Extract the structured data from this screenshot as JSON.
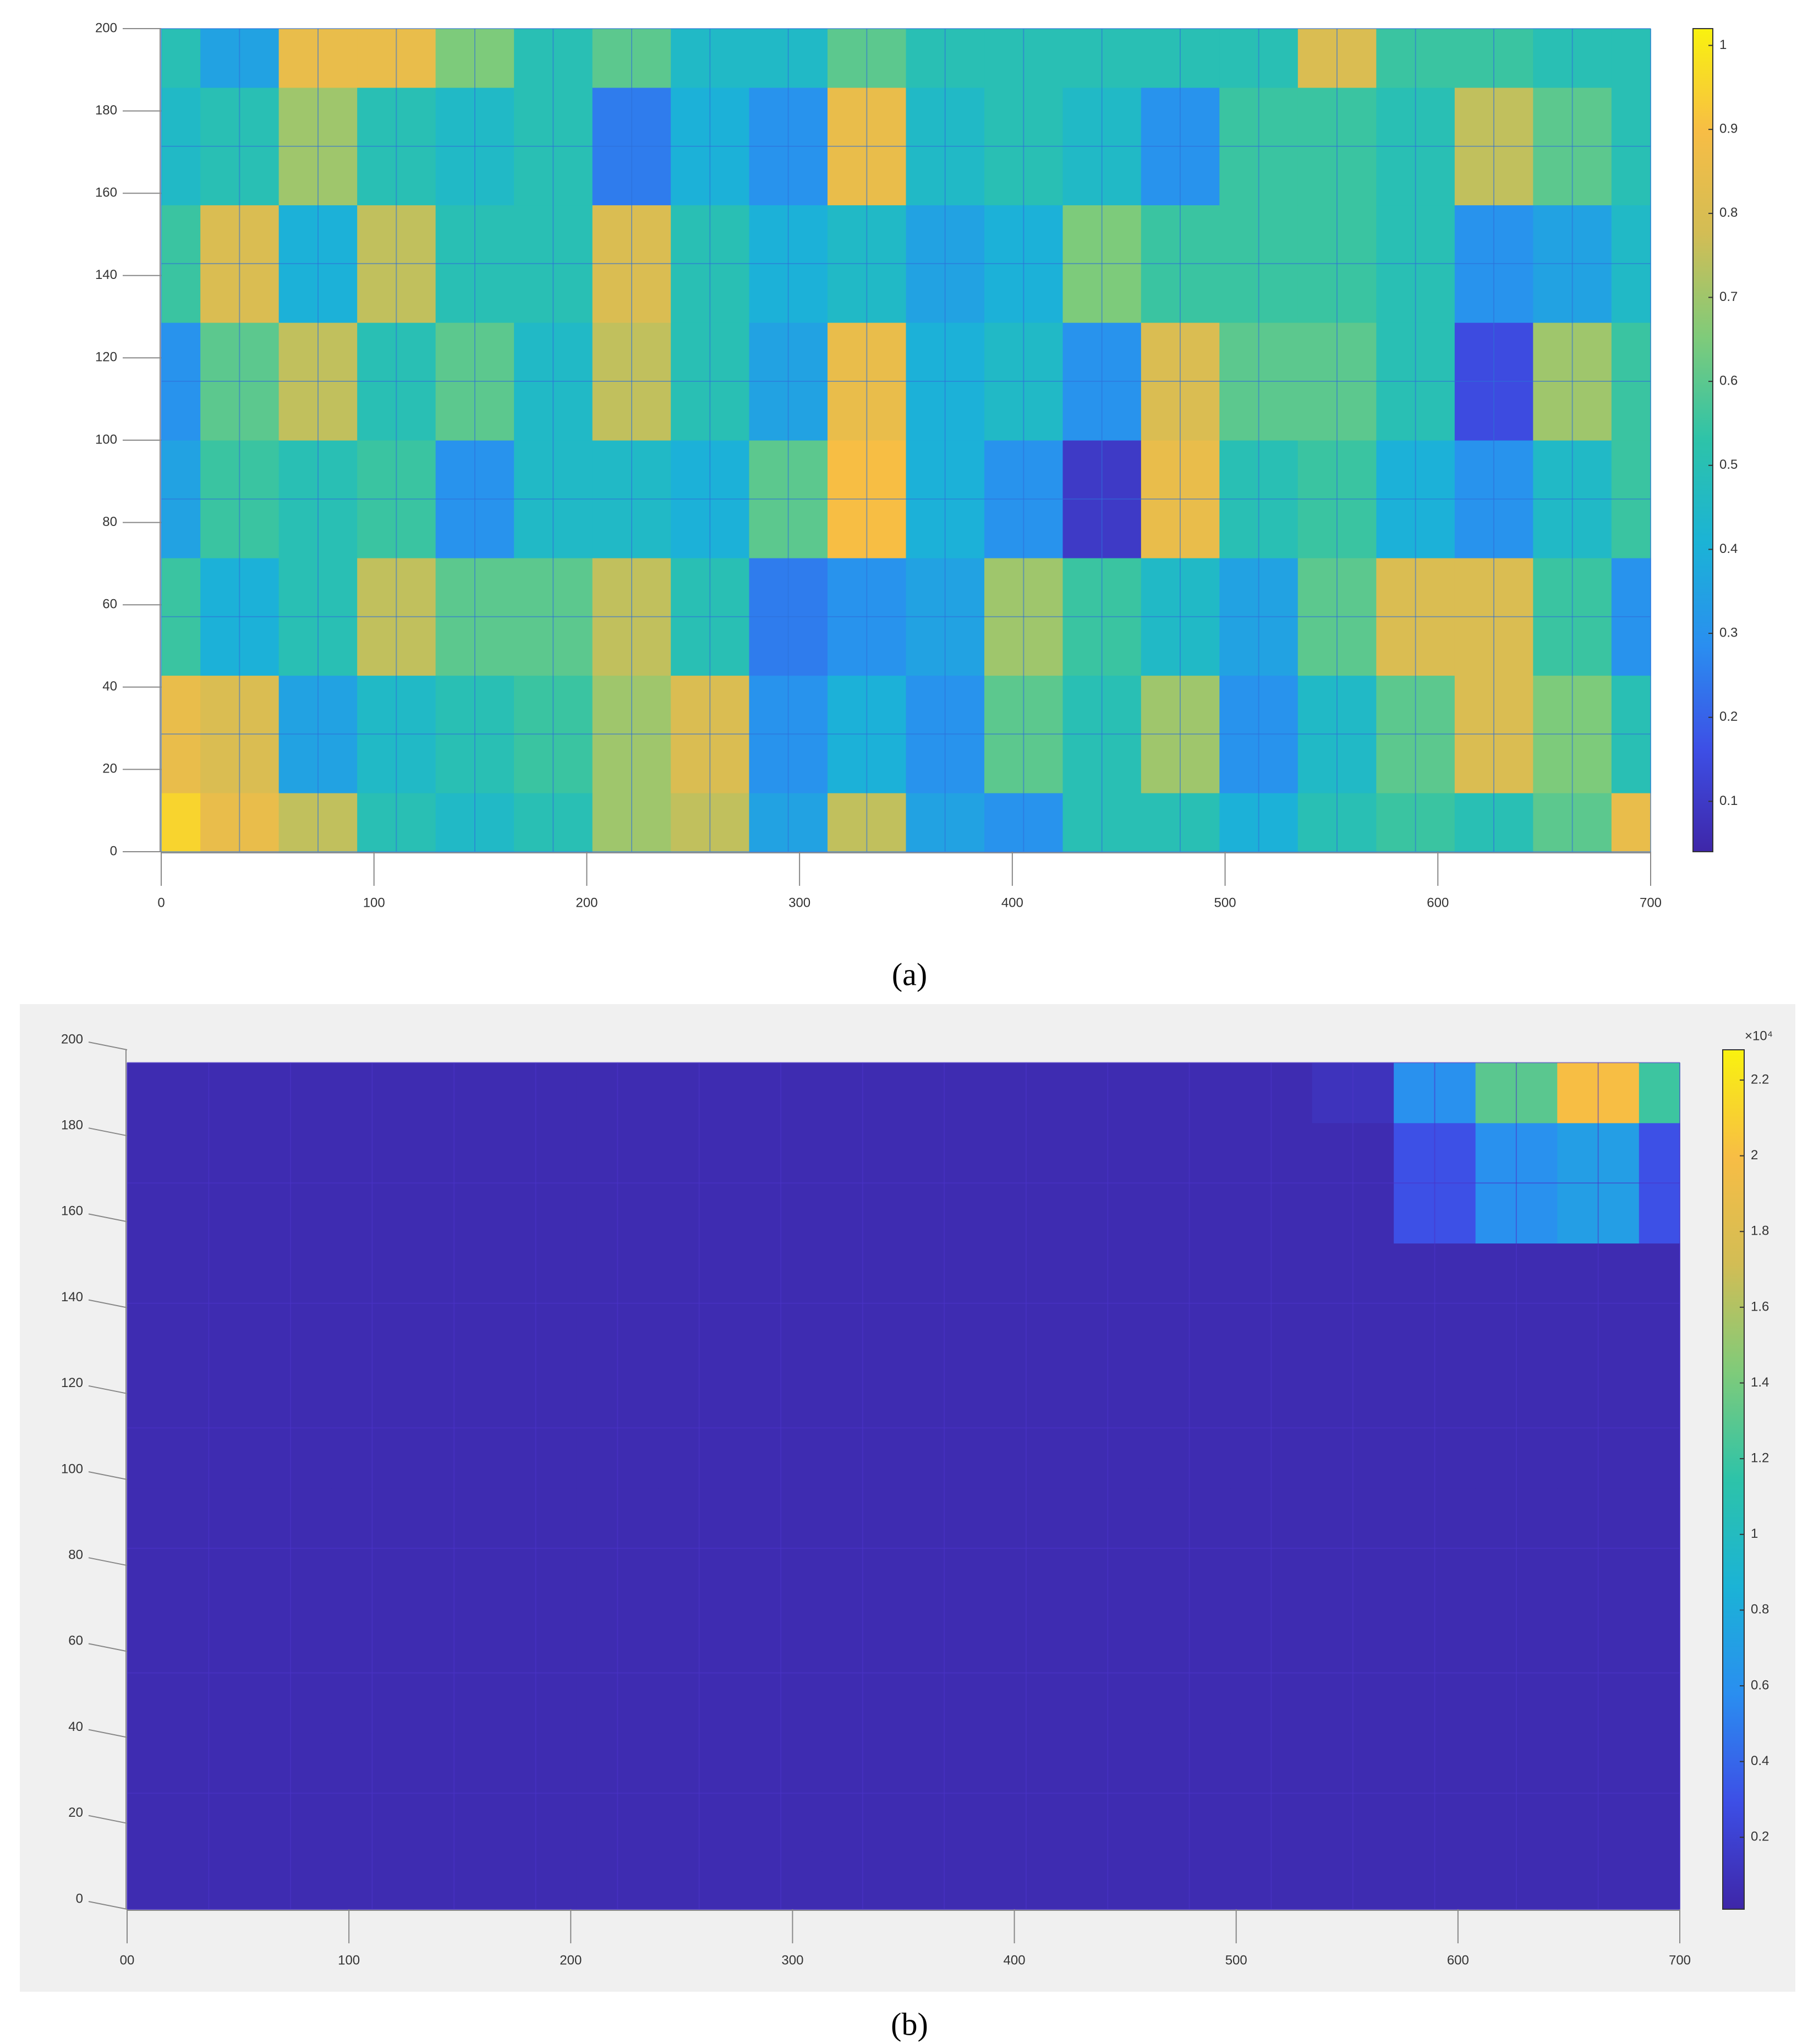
{
  "chart_data": [
    {
      "type": "heatmap",
      "caption": "(a)",
      "grid": true,
      "x": [
        0,
        36.8,
        73.7,
        110.5,
        147.4,
        184.2,
        221.1,
        257.9,
        294.7,
        331.6,
        368.4,
        405.3,
        442.1,
        478.9,
        515.8,
        552.6,
        589.5,
        626.3,
        663.2,
        700
      ],
      "y": [
        0,
        28.6,
        57.1,
        85.7,
        114.3,
        142.9,
        171.4,
        200
      ],
      "z": [
        [
          0.95,
          0.85,
          0.75,
          0.5,
          0.45,
          0.5,
          0.7,
          0.75,
          0.35,
          0.75,
          0.35,
          0.3,
          0.5,
          0.5,
          0.4,
          0.5,
          0.55,
          0.5,
          0.6,
          0.85
        ],
        [
          0.85,
          0.8,
          0.35,
          0.45,
          0.5,
          0.55,
          0.7,
          0.8,
          0.3,
          0.4,
          0.3,
          0.6,
          0.5,
          0.7,
          0.3,
          0.45,
          0.6,
          0.8,
          0.65,
          0.5
        ],
        [
          0.55,
          0.4,
          0.5,
          0.75,
          0.6,
          0.6,
          0.75,
          0.5,
          0.25,
          0.3,
          0.35,
          0.7,
          0.55,
          0.45,
          0.35,
          0.6,
          0.8,
          0.8,
          0.55,
          0.3
        ],
        [
          0.35,
          0.55,
          0.5,
          0.55,
          0.3,
          0.45,
          0.45,
          0.4,
          0.6,
          0.9,
          0.4,
          0.3,
          0.1,
          0.85,
          0.5,
          0.55,
          0.4,
          0.3,
          0.45,
          0.55
        ],
        [
          0.3,
          0.6,
          0.75,
          0.5,
          0.6,
          0.45,
          0.75,
          0.5,
          0.35,
          0.85,
          0.4,
          0.45,
          0.3,
          0.8,
          0.6,
          0.6,
          0.5,
          0.15,
          0.7,
          0.55
        ],
        [
          0.55,
          0.8,
          0.4,
          0.75,
          0.5,
          0.5,
          0.8,
          0.5,
          0.4,
          0.45,
          0.35,
          0.4,
          0.65,
          0.55,
          0.55,
          0.55,
          0.5,
          0.3,
          0.35,
          0.45
        ],
        [
          0.45,
          0.5,
          0.7,
          0.5,
          0.45,
          0.5,
          0.25,
          0.4,
          0.3,
          0.85,
          0.45,
          0.5,
          0.45,
          0.3,
          0.55,
          0.55,
          0.5,
          0.75,
          0.6,
          0.5
        ],
        [
          0.5,
          0.35,
          0.85,
          0.85,
          0.65,
          0.5,
          0.6,
          0.45,
          0.45,
          0.6,
          0.5,
          0.5,
          0.5,
          0.5,
          0.5,
          0.8,
          0.55,
          0.55,
          0.5,
          0.5
        ]
      ],
      "xlim": [
        0,
        700
      ],
      "ylim": [
        0,
        200
      ],
      "xticks": [
        0,
        100,
        200,
        300,
        400,
        500,
        600,
        700
      ],
      "yticks": [
        0,
        20,
        40,
        60,
        80,
        100,
        120,
        140,
        160,
        180,
        200
      ],
      "clim": [
        0.04,
        1.02
      ],
      "cticks": [
        0.1,
        0.2,
        0.3,
        0.4,
        0.5,
        0.6,
        0.7,
        0.8,
        0.9,
        1
      ],
      "colormap": [
        "#3e26a8",
        "#3d4fe6",
        "#2a8ef0",
        "#1bb3d6",
        "#2dc3a9",
        "#7fcb7a",
        "#d2bd55",
        "#f7bd45",
        "#f9f20f"
      ]
    },
    {
      "type": "heatmap",
      "caption": "(b)",
      "grid": true,
      "colorbar_exponent": "×10⁴",
      "x": [
        0,
        36.8,
        73.7,
        110.5,
        147.4,
        184.2,
        221.1,
        257.9,
        294.7,
        331.6,
        368.4,
        405.3,
        442.1,
        478.9,
        515.8,
        552.6,
        589.5,
        626.3,
        663.2,
        700
      ],
      "y": [
        0,
        27,
        55,
        84,
        112,
        141,
        169,
        197
      ],
      "z": [
        [
          0.05,
          0.05,
          0.05,
          0.05,
          0.05,
          0.05,
          0.05,
          0.05,
          0.05,
          0.05,
          0.05,
          0.05,
          0.05,
          0.05,
          0.05,
          0.05,
          0.05,
          0.05,
          0.05,
          0.05
        ],
        [
          0.05,
          0.05,
          0.05,
          0.05,
          0.05,
          0.05,
          0.05,
          0.05,
          0.05,
          0.05,
          0.05,
          0.05,
          0.05,
          0.05,
          0.05,
          0.05,
          0.05,
          0.05,
          0.05,
          0.05
        ],
        [
          0.05,
          0.05,
          0.05,
          0.05,
          0.05,
          0.05,
          0.05,
          0.05,
          0.05,
          0.05,
          0.05,
          0.05,
          0.05,
          0.05,
          0.05,
          0.05,
          0.05,
          0.05,
          0.05,
          0.05
        ],
        [
          0.05,
          0.05,
          0.05,
          0.05,
          0.05,
          0.05,
          0.05,
          0.05,
          0.05,
          0.05,
          0.05,
          0.05,
          0.05,
          0.05,
          0.05,
          0.05,
          0.05,
          0.05,
          0.05,
          0.05
        ],
        [
          0.05,
          0.05,
          0.05,
          0.05,
          0.05,
          0.05,
          0.05,
          0.05,
          0.05,
          0.05,
          0.05,
          0.05,
          0.05,
          0.05,
          0.05,
          0.05,
          0.05,
          0.05,
          0.05,
          0.05
        ],
        [
          0.05,
          0.05,
          0.05,
          0.05,
          0.05,
          0.05,
          0.05,
          0.05,
          0.05,
          0.05,
          0.05,
          0.05,
          0.05,
          0.05,
          0.05,
          0.05,
          0.05,
          0.05,
          0.05,
          0.05
        ],
        [
          0.05,
          0.05,
          0.05,
          0.05,
          0.05,
          0.05,
          0.05,
          0.05,
          0.05,
          0.05,
          0.05,
          0.05,
          0.05,
          0.05,
          0.05,
          0.05,
          0.3,
          0.6,
          0.7,
          0.3
        ],
        [
          0.05,
          0.05,
          0.05,
          0.05,
          0.05,
          0.05,
          0.05,
          0.05,
          0.05,
          0.05,
          0.05,
          0.05,
          0.05,
          0.05,
          0.05,
          0.1,
          0.6,
          1.3,
          2.0,
          1.2
        ]
      ],
      "xlim": [
        0,
        700
      ],
      "ylim": [
        0,
        200
      ],
      "xticks": [
        {
          "value": 0,
          "label": "00"
        },
        100,
        200,
        300,
        400,
        500,
        600,
        700
      ],
      "yticks": [
        0,
        20,
        40,
        60,
        80,
        100,
        120,
        140,
        160,
        180,
        200
      ],
      "clim": [
        0.01,
        2.28
      ],
      "cticks": [
        0.2,
        0.4,
        0.6,
        0.8,
        1,
        1.2,
        1.4,
        1.6,
        1.8,
        2,
        2.2
      ],
      "colormap": [
        "#3e26a8",
        "#3d4fe6",
        "#2a8ef0",
        "#1bb3d6",
        "#2dc3a9",
        "#7fcb7a",
        "#d2bd55",
        "#f7bd45",
        "#f9f20f"
      ]
    }
  ]
}
